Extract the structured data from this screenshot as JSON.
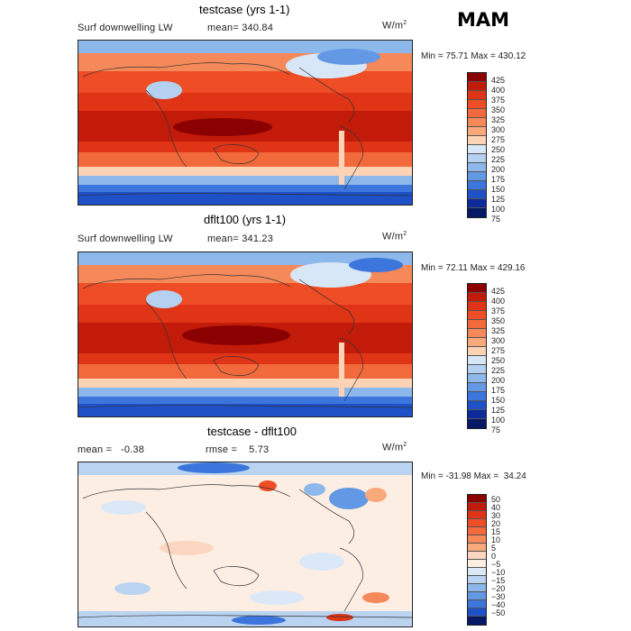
{
  "season": "MAM",
  "chart_data": [
    {
      "type": "heatmap",
      "title": "testcase (yrs 1-1)",
      "variable": "Surf downwelling LW",
      "mean_label": "mean=",
      "mean": "340.84",
      "units": "W/m",
      "units_exp": "2",
      "min_label": "Min =",
      "min": "75.71",
      "max_label": "Max =",
      "max": "430.12",
      "levels": [
        "425",
        "400",
        "375",
        "350",
        "325",
        "300",
        "275",
        "250",
        "225",
        "200",
        "175",
        "150",
        "125",
        "100",
        "75"
      ],
      "colors": [
        "#8b0000",
        "#c21b0a",
        "#e03416",
        "#ee4d25",
        "#f26a3c",
        "#f6895a",
        "#f9a97c",
        "#fdd3b6",
        "#d8e7f7",
        "#b4d1f1",
        "#8db8ec",
        "#6399e4",
        "#3c76dc",
        "#1e50c8",
        "#0c2a9a",
        "#061866"
      ]
    },
    {
      "type": "heatmap",
      "title": "dflt100 (yrs 1-1)",
      "variable": "Surf downwelling LW",
      "mean_label": "mean=",
      "mean": "341.23",
      "units": "W/m",
      "units_exp": "2",
      "min_label": "Min =",
      "min": "72.11",
      "max_label": "Max =",
      "max": "429.16",
      "levels": [
        "425",
        "400",
        "375",
        "350",
        "325",
        "300",
        "275",
        "250",
        "225",
        "200",
        "175",
        "150",
        "125",
        "100",
        "75"
      ],
      "colors": [
        "#8b0000",
        "#c21b0a",
        "#e03416",
        "#ee4d25",
        "#f26a3c",
        "#f6895a",
        "#f9a97c",
        "#fdd3b6",
        "#d8e7f7",
        "#b4d1f1",
        "#8db8ec",
        "#6399e4",
        "#3c76dc",
        "#1e50c8",
        "#0c2a9a",
        "#061866"
      ]
    },
    {
      "type": "heatmap",
      "title": "testcase - dflt100",
      "mean_label": "mean =",
      "mean": "-0.38",
      "rmse_label": "rmse =",
      "rmse": "5.73",
      "units": "W/m",
      "units_exp": "2",
      "min_label": "Min =",
      "min": "-31.98",
      "max_label": "Max =",
      "max": "34.24",
      "levels": [
        "50",
        "40",
        "30",
        "20",
        "15",
        "10",
        "5",
        "0",
        "−5",
        "−10",
        "−15",
        "−20",
        "−30",
        "−40",
        "−50"
      ],
      "colors": [
        "#8b0000",
        "#c21b0a",
        "#e03416",
        "#ee4d25",
        "#f26a3c",
        "#f6895a",
        "#f9a97c",
        "#fcd6c0",
        "#fdeee3",
        "#dbe8f7",
        "#b9d3f1",
        "#8db8ec",
        "#6399e4",
        "#3c76dc",
        "#1e50c8",
        "#061866"
      ]
    }
  ]
}
